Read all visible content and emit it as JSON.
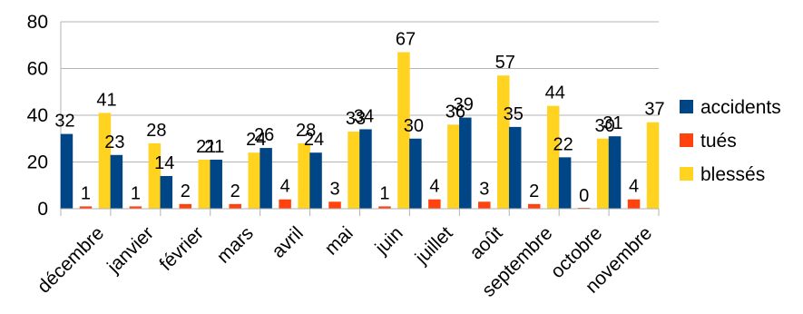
{
  "chart_data": {
    "type": "bar",
    "title": "",
    "xlabel": "",
    "ylabel": "",
    "ylim": [
      0,
      80
    ],
    "yticks": [
      0,
      20,
      40,
      60,
      80
    ],
    "grid": true,
    "legend_position": "right",
    "categories": [
      "décembre",
      "janvier",
      "février",
      "mars",
      "avril",
      "mai",
      "juin",
      "juillet",
      "août",
      "septembre",
      "octobre",
      "novembre"
    ],
    "series": [
      {
        "name": "accidents",
        "color": "#004586",
        "values": [
          32,
          23,
          14,
          21,
          26,
          24,
          34,
          30,
          39,
          35,
          22,
          31
        ]
      },
      {
        "name": "tués",
        "color": "#ff420e",
        "values": [
          1,
          1,
          2,
          2,
          4,
          3,
          1,
          4,
          3,
          2,
          0,
          4
        ]
      },
      {
        "name": "blessés",
        "color": "#ffd320",
        "values": [
          41,
          28,
          21,
          24,
          28,
          33,
          67,
          36,
          57,
          44,
          30,
          37
        ]
      }
    ]
  }
}
